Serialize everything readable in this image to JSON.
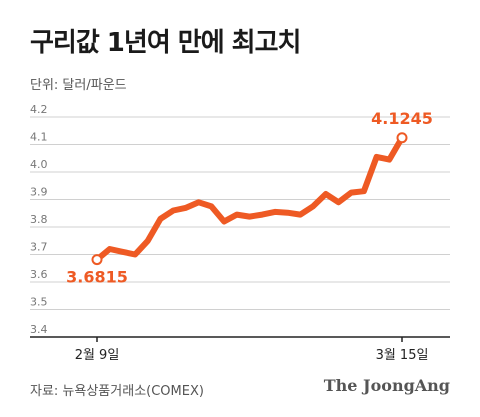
{
  "title": "구리값 1년여 만에 최고치",
  "unit_label": "단위: 달러/파운드",
  "source": "자료: 뉴욕상품거래소(COMEX)",
  "brand": "The JoongAng",
  "colors": {
    "line": "#ee5a24",
    "grid": "#d0d0d0",
    "axis": "#222222"
  },
  "chart_data": {
    "type": "line",
    "title": "구리값 1년여 만에 최고치",
    "ylabel": "단위: 달러/파운드",
    "ylim": [
      3.4,
      4.2
    ],
    "y_ticks": [
      "3.4",
      "3.5",
      "3.6",
      "3.7",
      "3.8",
      "3.9",
      "4.0",
      "4.1",
      "4.2"
    ],
    "x_tick_labels": [
      "2월 9일",
      "3월 15일"
    ],
    "start_value_label": "3.6815",
    "end_value_label": "4.1245",
    "grid": true,
    "series": [
      {
        "values": [
          3.6815,
          3.72,
          3.71,
          3.7,
          3.75,
          3.83,
          3.86,
          3.87,
          3.89,
          3.875,
          3.82,
          3.845,
          3.838,
          3.845,
          3.855,
          3.852,
          3.845,
          3.875,
          3.92,
          3.89,
          3.925,
          3.93,
          4.055,
          4.045,
          4.1245
        ]
      }
    ]
  }
}
